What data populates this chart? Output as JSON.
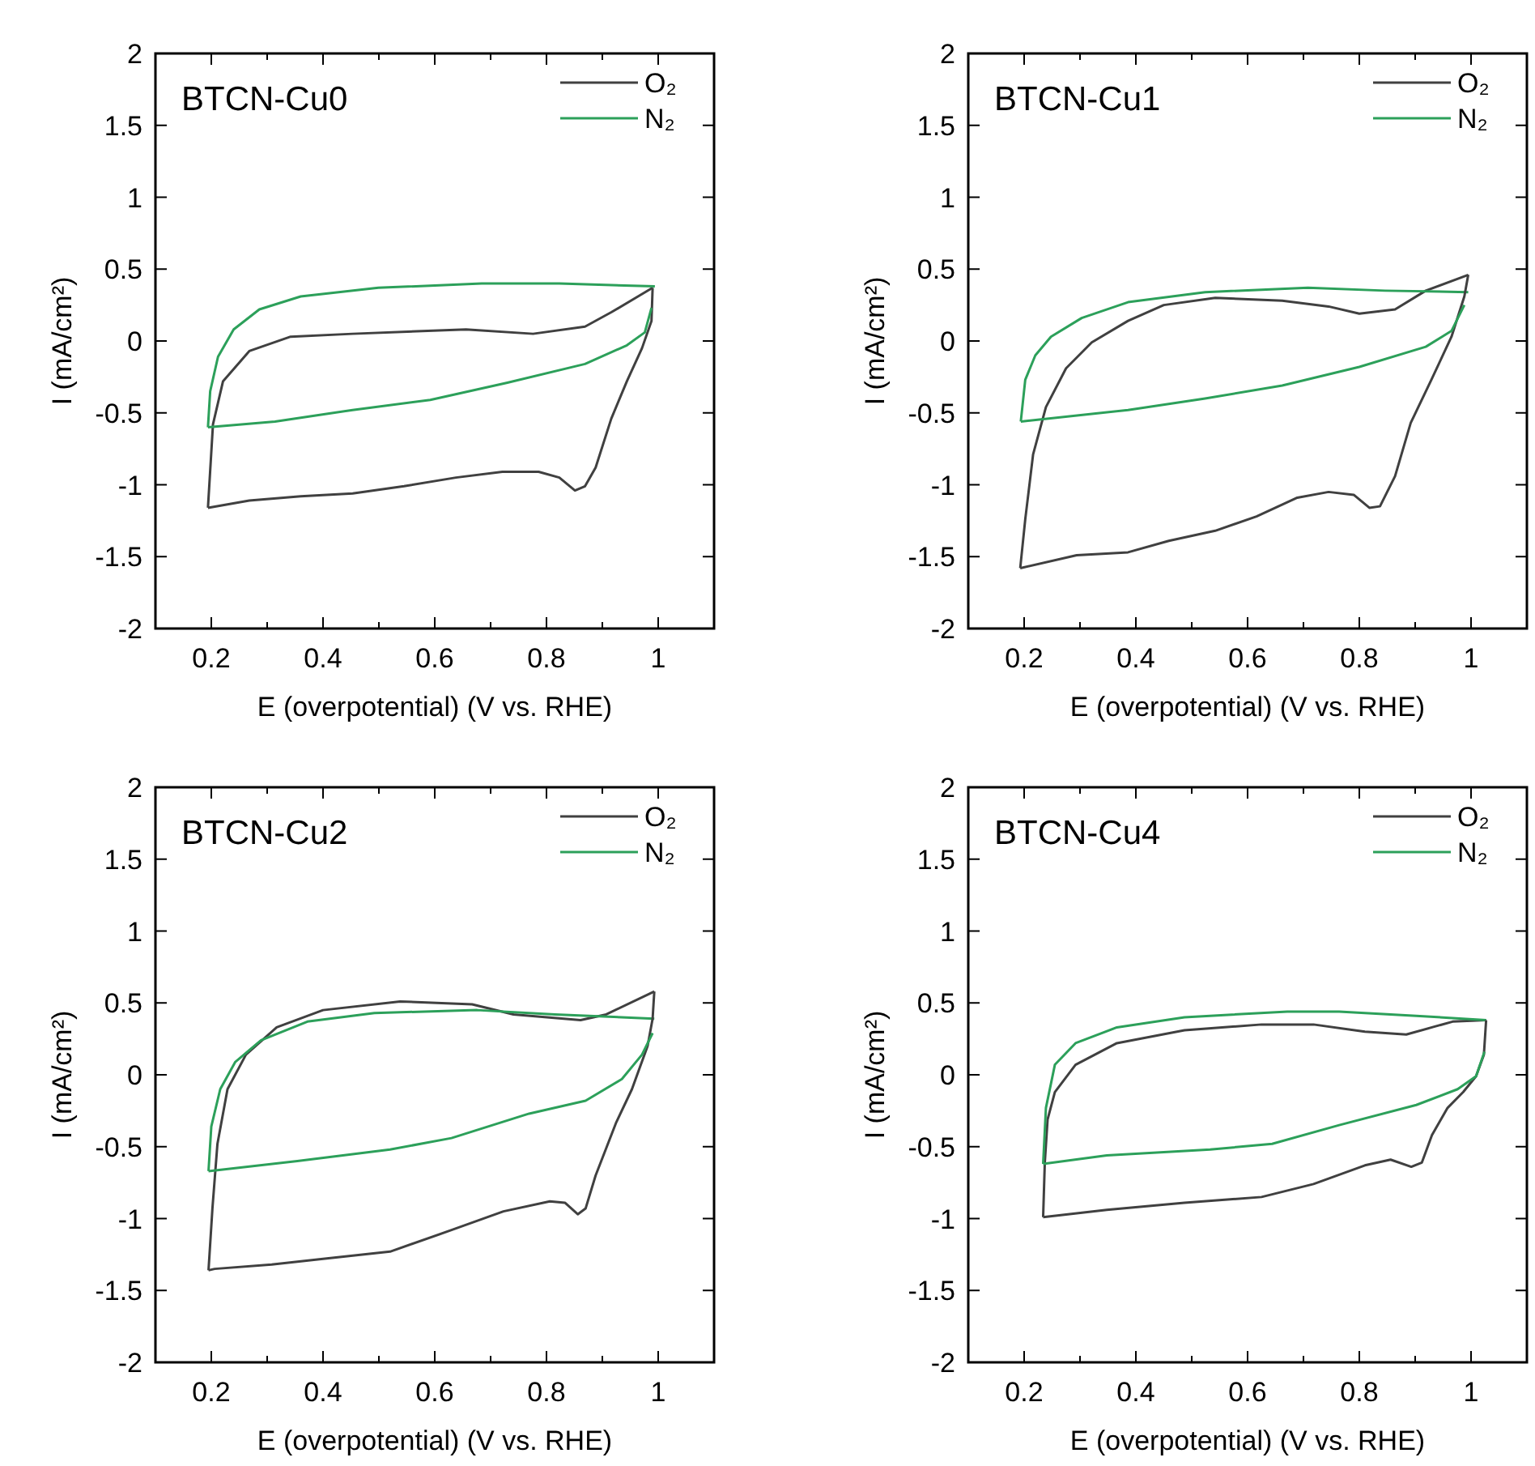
{
  "chart_data": [
    {
      "type": "line",
      "title": "BTCN-Cu0",
      "xlabel": "E (overpotential) (V vs. RHE)",
      "ylabel": "I (mA/cm²)",
      "xlim": [
        0.1,
        1.1
      ],
      "ylim": [
        -2,
        2
      ],
      "xticks": [
        0.2,
        {
          "value": 0.3,
          "label": null
        },
        0.4,
        {
          "value": 0.5,
          "label": null
        },
        0.6,
        {
          "value": 0.7,
          "label": null
        },
        0.8,
        {
          "value": 0.9,
          "label": null
        },
        1
      ],
      "yticks": [
        -2,
        -1.5,
        -1,
        -0.5,
        0,
        0.5,
        1,
        1.5,
        2
      ],
      "grid": false,
      "legend": "top right",
      "marker": "none",
      "line_style": "solid",
      "series": [
        {
          "name": "O₂",
          "color": "#404040",
          "x": [
            0.194,
            0.203,
            0.221,
            0.268,
            0.342,
            0.453,
            0.656,
            0.776,
            0.869,
            0.916,
            0.99
          ],
          "values": [
            -1.16,
            -0.58,
            -0.28,
            -0.07,
            0.03,
            0.05,
            0.08,
            0.05,
            0.1,
            0.2,
            0.37
          ]
        },
        {
          "name": "N₂",
          "color": "#2ca05a",
          "x": [
            0.194,
            0.198,
            0.212,
            0.24,
            0.286,
            0.36,
            0.499,
            0.684,
            0.823,
            0.994
          ],
          "values": [
            -0.6,
            -0.35,
            -0.11,
            0.08,
            0.22,
            0.31,
            0.37,
            0.4,
            0.4,
            0.38
          ]
        },
        {
          "color": "#404040",
          "x": [
            0.194,
            0.268,
            0.36,
            0.453,
            0.545,
            0.638,
            0.721,
            0.786,
            0.823,
            0.851,
            0.869,
            0.888,
            0.916,
            0.944,
            0.971,
            0.988,
            0.99
          ],
          "values": [
            -1.16,
            -1.11,
            -1.08,
            -1.06,
            -1.01,
            -0.95,
            -0.91,
            -0.91,
            -0.95,
            -1.04,
            -1.01,
            -0.88,
            -0.54,
            -0.28,
            -0.05,
            0.14,
            0.37
          ]
        },
        {
          "color": "#2ca05a",
          "x": [
            0.194,
            0.314,
            0.453,
            0.592,
            0.73,
            0.869,
            0.944,
            0.976,
            0.988
          ],
          "values": [
            -0.6,
            -0.56,
            -0.48,
            -0.41,
            -0.29,
            -0.16,
            -0.03,
            0.06,
            0.23
          ]
        }
      ]
    },
    {
      "type": "line",
      "title": "BTCN-Cu1",
      "xlabel": "E (overpotential) (V vs. RHE)",
      "ylabel": "I (mA/cm²)",
      "xlim": [
        0.1,
        1.1
      ],
      "ylim": [
        -2,
        2
      ],
      "xticks": [
        0.2,
        {
          "value": 0.3,
          "label": null
        },
        0.4,
        {
          "value": 0.5,
          "label": null
        },
        0.6,
        {
          "value": 0.7,
          "label": null
        },
        0.8,
        {
          "value": 0.9,
          "label": null
        },
        1
      ],
      "yticks": [
        -2,
        -1.5,
        -1,
        -0.5,
        0,
        0.5,
        1,
        1.5,
        2
      ],
      "grid": false,
      "legend": "top right",
      "marker": "none",
      "line_style": "solid",
      "series": [
        {
          "name": "O₂",
          "color": "#404040",
          "x": [
            0.193,
            0.202,
            0.216,
            0.239,
            0.275,
            0.321,
            0.386,
            0.45,
            0.542,
            0.662,
            0.745,
            0.8,
            0.864,
            0.919,
            0.995
          ],
          "values": [
            -1.58,
            -1.24,
            -0.79,
            -0.46,
            -0.19,
            -0.01,
            0.14,
            0.25,
            0.3,
            0.28,
            0.24,
            0.19,
            0.22,
            0.35,
            0.46
          ]
        },
        {
          "name": "N₂",
          "color": "#2ca05a",
          "x": [
            0.194,
            0.202,
            0.22,
            0.248,
            0.303,
            0.386,
            0.524,
            0.708,
            0.846,
            0.995
          ],
          "values": [
            -0.56,
            -0.27,
            -0.1,
            0.03,
            0.16,
            0.27,
            0.34,
            0.37,
            0.35,
            0.34
          ]
        },
        {
          "color": "#404040",
          "x": [
            0.193,
            0.294,
            0.386,
            0.459,
            0.542,
            0.616,
            0.689,
            0.745,
            0.79,
            0.818,
            0.837,
            0.864,
            0.892,
            0.929,
            0.965,
            0.988,
            0.995
          ],
          "values": [
            -1.58,
            -1.49,
            -1.47,
            -1.39,
            -1.32,
            -1.22,
            -1.09,
            -1.05,
            -1.07,
            -1.16,
            -1.15,
            -0.94,
            -0.57,
            -0.27,
            0.03,
            0.31,
            0.46
          ]
        },
        {
          "color": "#2ca05a",
          "x": [
            0.194,
            0.386,
            0.524,
            0.662,
            0.8,
            0.919,
            0.965,
            0.988
          ],
          "values": [
            -0.56,
            -0.48,
            -0.4,
            -0.31,
            -0.18,
            -0.04,
            0.07,
            0.25
          ]
        }
      ]
    },
    {
      "type": "line",
      "title": "BTCN-Cu2",
      "xlabel": "E (overpotential) (V vs. RHE)",
      "ylabel": "I (mA/cm²)",
      "xlim": [
        0.1,
        1.1
      ],
      "ylim": [
        -2,
        2
      ],
      "xticks": [
        0.2,
        {
          "value": 0.3,
          "label": null
        },
        0.4,
        {
          "value": 0.5,
          "label": null
        },
        0.6,
        {
          "value": 0.7,
          "label": null
        },
        0.8,
        {
          "value": 0.9,
          "label": null
        },
        1
      ],
      "yticks": [
        -2,
        -1.5,
        -1,
        -0.5,
        0,
        0.5,
        1,
        1.5,
        2
      ],
      "grid": false,
      "legend": "top right",
      "marker": "none",
      "line_style": "solid",
      "series": [
        {
          "name": "O₂",
          "color": "#404040",
          "x": [
            0.195,
            0.202,
            0.211,
            0.229,
            0.262,
            0.317,
            0.4,
            0.538,
            0.667,
            0.741,
            0.861,
            0.907,
            0.993
          ],
          "values": [
            -1.36,
            -0.93,
            -0.48,
            -0.1,
            0.14,
            0.33,
            0.45,
            0.51,
            0.49,
            0.42,
            0.38,
            0.42,
            0.58
          ]
        },
        {
          "name": "N₂",
          "color": "#2ca05a",
          "x": [
            0.195,
            0.2,
            0.216,
            0.243,
            0.289,
            0.372,
            0.492,
            0.676,
            0.815,
            0.993
          ],
          "values": [
            -0.67,
            -0.36,
            -0.1,
            0.09,
            0.24,
            0.37,
            0.43,
            0.45,
            0.42,
            0.39
          ]
        },
        {
          "color": "#404040",
          "x": [
            0.195,
            0.206,
            0.308,
            0.4,
            0.52,
            0.63,
            0.723,
            0.806,
            0.833,
            0.856,
            0.87,
            0.888,
            0.925,
            0.953,
            0.981,
            0.99,
            0.993
          ],
          "values": [
            -1.36,
            -1.35,
            -1.32,
            -1.28,
            -1.23,
            -1.08,
            -0.95,
            -0.88,
            -0.89,
            -0.97,
            -0.93,
            -0.7,
            -0.33,
            -0.1,
            0.2,
            0.39,
            0.58
          ]
        },
        {
          "color": "#2ca05a",
          "x": [
            0.195,
            0.354,
            0.52,
            0.63,
            0.769,
            0.87,
            0.935,
            0.971,
            0.99
          ],
          "values": [
            -0.67,
            -0.6,
            -0.52,
            -0.44,
            -0.27,
            -0.18,
            -0.03,
            0.14,
            0.29
          ]
        }
      ]
    },
    {
      "type": "line",
      "title": "BTCN-Cu4",
      "xlabel": "E (overpotential) (V vs. RHE)",
      "ylabel": "I (mA/cm²)",
      "xlim": [
        0.1,
        1.1
      ],
      "ylim": [
        -2,
        2
      ],
      "xticks": [
        0.2,
        {
          "value": 0.3,
          "label": null
        },
        0.4,
        {
          "value": 0.5,
          "label": null
        },
        0.6,
        {
          "value": 0.7,
          "label": null
        },
        0.8,
        {
          "value": 0.9,
          "label": null
        },
        1
      ],
      "yticks": [
        -2,
        -1.5,
        -1,
        -0.5,
        0,
        0.5,
        1,
        1.5,
        2
      ],
      "grid": false,
      "legend": "top right",
      "marker": "none",
      "line_style": "solid",
      "series": [
        {
          "name": "O₂",
          "color": "#404040",
          "x": [
            0.234,
            0.237,
            0.242,
            0.255,
            0.292,
            0.366,
            0.487,
            0.625,
            0.718,
            0.81,
            0.884,
            0.93,
            0.967,
            1.027
          ],
          "values": [
            -0.99,
            -0.61,
            -0.31,
            -0.12,
            0.07,
            0.22,
            0.31,
            0.35,
            0.35,
            0.3,
            0.28,
            0.33,
            0.37,
            0.38
          ]
        },
        {
          "name": "N₂",
          "color": "#2ca05a",
          "x": [
            0.234,
            0.239,
            0.255,
            0.292,
            0.366,
            0.487,
            0.671,
            0.764,
            0.902,
            1.027
          ],
          "values": [
            -0.62,
            -0.23,
            0.07,
            0.22,
            0.33,
            0.4,
            0.44,
            0.44,
            0.41,
            0.38
          ]
        },
        {
          "color": "#404040",
          "x": [
            0.234,
            0.348,
            0.487,
            0.625,
            0.718,
            0.81,
            0.856,
            0.893,
            0.912,
            0.93,
            0.958,
            0.986,
            1.009,
            1.023,
            1.027
          ],
          "values": [
            -0.99,
            -0.94,
            -0.89,
            -0.85,
            -0.76,
            -0.63,
            -0.59,
            -0.64,
            -0.61,
            -0.42,
            -0.23,
            -0.12,
            -0.01,
            0.14,
            0.38
          ]
        },
        {
          "color": "#2ca05a",
          "x": [
            0.234,
            0.348,
            0.533,
            0.644,
            0.764,
            0.902,
            0.976,
            1.009,
            1.024
          ],
          "values": [
            -0.62,
            -0.56,
            -0.52,
            -0.48,
            -0.35,
            -0.21,
            -0.1,
            -0.01,
            0.16
          ]
        }
      ]
    }
  ]
}
